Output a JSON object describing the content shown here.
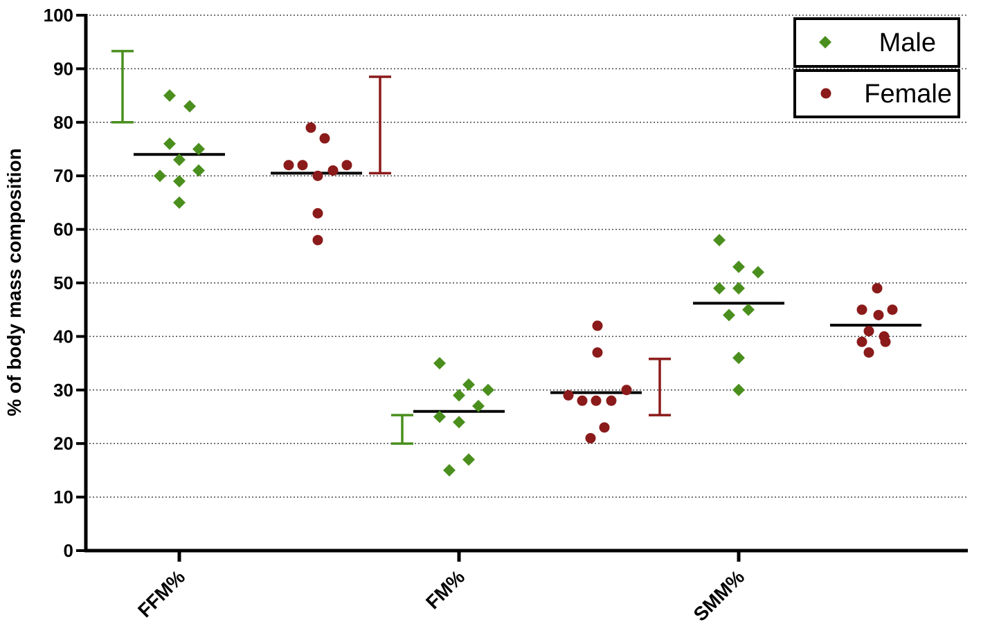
{
  "chart_data": {
    "type": "scatter",
    "ylabel": "% of body mass composition",
    "ylim": [
      0,
      100
    ],
    "yticks": [
      0,
      10,
      20,
      30,
      40,
      50,
      60,
      70,
      80,
      90,
      100
    ],
    "grid": "horizontal-dotted",
    "legend_position": "top-right",
    "categories": [
      "FFM%",
      "FM%",
      "SMM%"
    ],
    "series": [
      {
        "name": "Male",
        "color": "#4a8f1d",
        "marker": "diamond",
        "groups": [
          {
            "category": "FFM%",
            "values": [
              85,
              83,
              76,
              75,
              73,
              71,
              70,
              69,
              65
            ],
            "mean": 74,
            "error_bar": [
              80,
              93.3
            ]
          },
          {
            "category": "FM%",
            "values": [
              35,
              31,
              30,
              29,
              27,
              25,
              24,
              17,
              15
            ],
            "mean": 26,
            "error_bar": [
              20,
              25.3
            ]
          },
          {
            "category": "SMM%",
            "values": [
              58,
              53,
              52,
              49,
              49,
              45,
              44,
              36,
              30
            ],
            "mean": 46.2,
            "error_bar": null
          }
        ]
      },
      {
        "name": "Female",
        "color": "#8b1a1a",
        "marker": "circle",
        "groups": [
          {
            "category": "FFM%",
            "values": [
              79,
              77,
              72,
              72,
              72,
              71,
              70,
              63,
              58
            ],
            "mean": 70.5,
            "error_bar": [
              70.5,
              88.5
            ]
          },
          {
            "category": "FM%",
            "values": [
              42,
              37,
              30,
              29,
              28,
              28,
              28,
              23,
              21
            ],
            "mean": 29.5,
            "error_bar": [
              25.3,
              35.8
            ]
          },
          {
            "category": "SMM%",
            "values": [
              49,
              45,
              45,
              44,
              41,
              40,
              39,
              39,
              37
            ],
            "mean": 42.1,
            "error_bar": null
          }
        ]
      }
    ]
  }
}
